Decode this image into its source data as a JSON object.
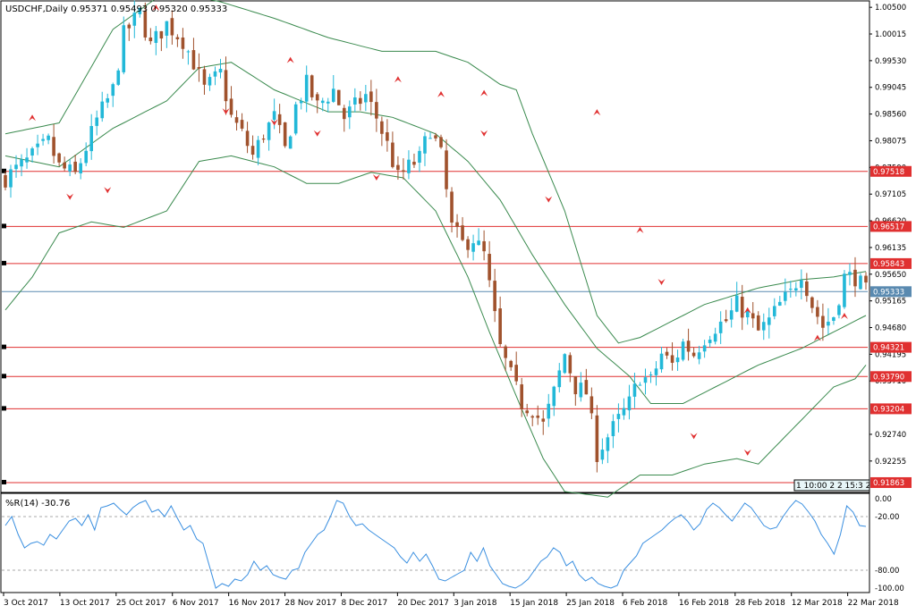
{
  "header": {
    "symbol_line": "USDCHF,Daily  0.95371 0.95493 0.95320 0.95333",
    "indicator_label": "%R(14) -30.76"
  },
  "colors": {
    "bull": "#22b8d8",
    "bear": "#a0522d",
    "bands": "#3a8a4e",
    "level_line": "#e03030",
    "current_line": "#5a8ab0",
    "wpr_line": "#3a8fe0",
    "fractal": "#e03030"
  },
  "chart_data": [
    {
      "type": "candlestick",
      "title": "USDCHF,Daily",
      "ohlc_header": [
        "0.95371",
        "0.95493",
        "0.95320",
        "0.95333"
      ],
      "ylim": [
        0.917,
        1.006
      ],
      "y_ticks": [
        "1.00500",
        "1.00015",
        "0.99530",
        "0.99045",
        "0.98560",
        "0.98075",
        "0.97590",
        "0.97105",
        "0.96620",
        "0.96135",
        "0.95650",
        "0.95165",
        "0.94680",
        "0.94195",
        "0.93710",
        "0.92740",
        "0.92255"
      ],
      "x_labels": [
        "3 Oct 2017",
        "13 Oct 2017",
        "25 Oct 2017",
        "6 Nov 2017",
        "16 Nov 2017",
        "28 Nov 2017",
        "8 Dec 2017",
        "20 Dec 2017",
        "3 Jan 2018",
        "15 Jan 2018",
        "25 Jan 2018",
        "6 Feb 2018",
        "16 Feb 2018",
        "28 Feb 2018",
        "12 Mar 2018",
        "22 Mar 2018"
      ],
      "price_levels": [
        {
          "label": "0.97518",
          "value": 0.97518
        },
        {
          "label": "0.96517",
          "value": 0.96517
        },
        {
          "label": "0.95843",
          "value": 0.95843
        },
        {
          "label": "0.94321",
          "value": 0.94321
        },
        {
          "label": "0.93790",
          "value": 0.9379
        },
        {
          "label": "0.93204",
          "value": 0.93204
        },
        {
          "label": "0.91863",
          "value": 0.91863
        }
      ],
      "current_price": {
        "label": "0.95333",
        "value": 0.95333
      },
      "time_box": "1 10:00 2 2 15:3 2",
      "close_path": [
        [
          0,
          0.974
        ],
        [
          4,
          0.977
        ],
        [
          8,
          0.9805
        ],
        [
          10,
          0.976
        ],
        [
          13,
          0.9745
        ],
        [
          15,
          0.9795
        ],
        [
          17,
          0.9845
        ],
        [
          20,
          0.99
        ],
        [
          22,
          1.0
        ],
        [
          25,
          1.004
        ],
        [
          27,
          0.998
        ],
        [
          30,
          1.002
        ],
        [
          33,
          0.999
        ],
        [
          35,
          0.995
        ],
        [
          37,
          0.99
        ],
        [
          40,
          0.993
        ],
        [
          42,
          0.985
        ],
        [
          44,
          0.982
        ],
        [
          46,
          0.978
        ],
        [
          48,
          0.982
        ],
        [
          50,
          0.985
        ],
        [
          52,
          0.979
        ],
        [
          54,
          0.987
        ],
        [
          56,
          0.991
        ],
        [
          58,
          0.987
        ],
        [
          61,
          0.99
        ],
        [
          63,
          0.985
        ],
        [
          65,
          0.987
        ],
        [
          67,
          0.989
        ],
        [
          69,
          0.985
        ],
        [
          71,
          0.98
        ],
        [
          73,
          0.974
        ],
        [
          75,
          0.976
        ],
        [
          77,
          0.9775
        ],
        [
          79,
          0.983
        ],
        [
          81,
          0.978
        ],
        [
          83,
          0.965
        ],
        [
          85,
          0.962
        ],
        [
          87,
          0.963
        ],
        [
          89,
          0.96
        ],
        [
          92,
          0.943
        ],
        [
          94,
          0.938
        ],
        [
          96,
          0.933
        ],
        [
          98,
          0.932
        ],
        [
          100,
          0.929
        ],
        [
          102,
          0.935
        ],
        [
          104,
          0.942
        ],
        [
          106,
          0.936
        ],
        [
          108,
          0.935
        ],
        [
          110,
          0.924
        ],
        [
          112,
          0.927
        ],
        [
          114,
          0.93
        ],
        [
          116,
          0.933
        ],
        [
          118,
          0.938
        ],
        [
          120,
          0.937
        ],
        [
          122,
          0.942
        ],
        [
          124,
          0.94
        ],
        [
          126,
          0.944
        ],
        [
          128,
          0.942
        ],
        [
          130,
          0.945
        ],
        [
          132,
          0.947
        ],
        [
          134,
          0.948
        ],
        [
          136,
          0.951
        ],
        [
          138,
          0.949
        ],
        [
          140,
          0.946
        ],
        [
          142,
          0.948
        ],
        [
          144,
          0.951
        ],
        [
          146,
          0.953
        ],
        [
          148,
          0.957
        ],
        [
          150,
          0.951
        ],
        [
          152,
          0.947
        ],
        [
          154,
          0.949
        ],
        [
          156,
          0.956
        ],
        [
          158,
          0.956
        ],
        [
          160,
          0.9533
        ]
      ],
      "bands_upper": [
        [
          0,
          0.982
        ],
        [
          10,
          0.984
        ],
        [
          20,
          1.001
        ],
        [
          30,
          1.008
        ],
        [
          40,
          1.006
        ],
        [
          50,
          1.003
        ],
        [
          60,
          0.9995
        ],
        [
          70,
          0.997
        ],
        [
          80,
          0.997
        ],
        [
          86,
          0.995
        ],
        [
          92,
          0.991
        ],
        [
          95,
          0.99
        ],
        [
          98,
          0.982
        ],
        [
          104,
          0.968
        ],
        [
          110,
          0.949
        ],
        [
          114,
          0.944
        ],
        [
          118,
          0.945
        ],
        [
          124,
          0.948
        ],
        [
          130,
          0.951
        ],
        [
          140,
          0.954
        ],
        [
          148,
          0.9555
        ],
        [
          154,
          0.956
        ],
        [
          160,
          0.957
        ]
      ],
      "bands_middle": [
        [
          0,
          0.978
        ],
        [
          10,
          0.976
        ],
        [
          20,
          0.983
        ],
        [
          30,
          0.988
        ],
        [
          36,
          0.994
        ],
        [
          42,
          0.995
        ],
        [
          50,
          0.99
        ],
        [
          60,
          0.986
        ],
        [
          66,
          0.986
        ],
        [
          72,
          0.985
        ],
        [
          80,
          0.982
        ],
        [
          86,
          0.977
        ],
        [
          92,
          0.97
        ],
        [
          98,
          0.96
        ],
        [
          104,
          0.951
        ],
        [
          110,
          0.943
        ],
        [
          116,
          0.938
        ],
        [
          120,
          0.933
        ],
        [
          126,
          0.933
        ],
        [
          132,
          0.936
        ],
        [
          140,
          0.94
        ],
        [
          148,
          0.943
        ],
        [
          156,
          0.947
        ],
        [
          160,
          0.949
        ]
      ],
      "bands_lower": [
        [
          0,
          0.95
        ],
        [
          5,
          0.956
        ],
        [
          10,
          0.964
        ],
        [
          16,
          0.966
        ],
        [
          22,
          0.965
        ],
        [
          30,
          0.968
        ],
        [
          36,
          0.977
        ],
        [
          42,
          0.978
        ],
        [
          50,
          0.976
        ],
        [
          56,
          0.973
        ],
        [
          62,
          0.973
        ],
        [
          68,
          0.975
        ],
        [
          74,
          0.974
        ],
        [
          80,
          0.968
        ],
        [
          86,
          0.956
        ],
        [
          90,
          0.946
        ],
        [
          96,
          0.932
        ],
        [
          100,
          0.923
        ],
        [
          104,
          0.917
        ],
        [
          108,
          0.9165
        ],
        [
          112,
          0.916
        ],
        [
          118,
          0.92
        ],
        [
          124,
          0.92
        ],
        [
          130,
          0.922
        ],
        [
          136,
          0.923
        ],
        [
          140,
          0.922
        ],
        [
          146,
          0.928
        ],
        [
          150,
          0.932
        ],
        [
          154,
          0.936
        ],
        [
          158,
          0.9375
        ],
        [
          160,
          0.94
        ]
      ],
      "fractals_up": [
        [
          5,
          0.985
        ],
        [
          28,
          1.005
        ],
        [
          53,
          0.9955
        ],
        [
          73,
          0.992
        ],
        [
          81,
          0.9893
        ],
        [
          89,
          0.9895
        ],
        [
          110,
          0.986
        ],
        [
          118,
          0.9646
        ],
        [
          138,
          0.95
        ],
        [
          151,
          0.945
        ],
        [
          156,
          0.949
        ],
        [
          171,
          0.952
        ],
        [
          176,
          0.955
        ],
        [
          192,
          0.9607
        ],
        [
          202,
          0.9607
        ]
      ],
      "fractals_down": [
        [
          12,
          0.9705
        ],
        [
          19,
          0.9717
        ],
        [
          41,
          0.986
        ],
        [
          50,
          0.984
        ],
        [
          58,
          0.982
        ],
        [
          69,
          0.974
        ],
        [
          89,
          0.982
        ],
        [
          101,
          0.97
        ],
        [
          122,
          0.955
        ],
        [
          128,
          0.927
        ],
        [
          138,
          0.924
        ],
        [
          162,
          0.9315
        ],
        [
          170,
          0.9335
        ],
        [
          179,
          0.941
        ],
        [
          196,
          0.941
        ]
      ],
      "candle_count": 161
    },
    {
      "type": "line",
      "title": "%R(14) -30.76",
      "ylim": [
        -100,
        0
      ],
      "y_ticks": [
        "0.00",
        "-20.00",
        "-80.00",
        "-100.00"
      ],
      "levels": [
        -20,
        -80
      ],
      "values": [
        -30,
        -20,
        -40,
        -55,
        -50,
        -48,
        -52,
        -40,
        -45,
        -35,
        -25,
        -22,
        -30,
        -18,
        -35,
        -10,
        -8,
        -5,
        -12,
        -18,
        -10,
        -5,
        -2,
        -15,
        -12,
        -20,
        -8,
        -22,
        -35,
        -30,
        -45,
        -50,
        -75,
        -100,
        -95,
        -98,
        -90,
        -92,
        -85,
        -70,
        -80,
        -75,
        -85,
        -88,
        -90,
        -80,
        -78,
        -60,
        -50,
        -40,
        -35,
        -20,
        -2,
        -5,
        -20,
        -30,
        -28,
        -35,
        -40,
        -45,
        -50,
        -55,
        -65,
        -72,
        -60,
        -70,
        -62,
        -75,
        -90,
        -92,
        -88,
        -84,
        -80,
        -60,
        -70,
        -55,
        -75,
        -85,
        -95,
        -98,
        -100,
        -96,
        -90,
        -80,
        -70,
        -65,
        -55,
        -60,
        -75,
        -70,
        -85,
        -92,
        -88,
        -95,
        -98,
        -100,
        -97,
        -80,
        -72,
        -64,
        -50,
        -45,
        -40,
        -35,
        -28,
        -22,
        -18,
        -25,
        -35,
        -28,
        -12,
        -5,
        -10,
        -18,
        -25,
        -15,
        -5,
        -10,
        -20,
        -30,
        -34,
        -32,
        -20,
        -10,
        -2,
        -6,
        -15,
        -25,
        -40,
        -50,
        -62,
        -40,
        -8,
        -15,
        -30,
        -31
      ]
    }
  ]
}
